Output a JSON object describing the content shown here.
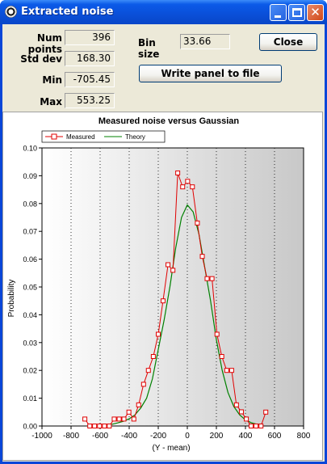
{
  "window": {
    "title": "Extracted noise"
  },
  "titlebar": {
    "close_glyph": "✕"
  },
  "stats": [
    {
      "label": "Num points",
      "value": "396"
    },
    {
      "label": "Std dev",
      "value": "168.30"
    },
    {
      "label": "Min",
      "value": "-705.45"
    },
    {
      "label": "Max",
      "value": "553.25"
    }
  ],
  "bin": {
    "label": "Bin size",
    "value": "33.66"
  },
  "buttons": {
    "close": "Close",
    "write": "Write panel to file"
  },
  "colors": {
    "measured": "#e00000",
    "theory": "#008000",
    "plot_bg_dark": "#c8c8c8",
    "plot_bg_light": "#ffffff"
  },
  "chart_data": {
    "type": "line",
    "title": "Measured noise versus Gaussian",
    "xlabel": "(Y - mean)",
    "ylabel": "Probability",
    "xlim": [
      -1000,
      800
    ],
    "ylim": [
      0,
      0.1
    ],
    "x_ticks": [
      -1000,
      -800,
      -600,
      -400,
      -200,
      0,
      200,
      400,
      600,
      800
    ],
    "y_ticks": [
      0.0,
      0.01,
      0.02,
      0.03,
      0.04,
      0.05,
      0.06,
      0.07,
      0.08,
      0.09,
      0.1
    ],
    "x_tick_labels": [
      "-1000",
      "-800",
      "-600",
      "-400",
      "-200",
      "0",
      "200",
      "400",
      "600",
      "800"
    ],
    "y_tick_labels": [
      "0.00",
      "0.01",
      "0.02",
      "0.03",
      "0.04",
      "0.05",
      "0.06",
      "0.07",
      "0.08",
      "0.09",
      "0.10"
    ],
    "grid": true,
    "legend": "top-left",
    "series": [
      {
        "name": "Measured",
        "marker": "square",
        "x": [
          -705,
          -671,
          -638,
          -604,
          -570,
          -537,
          -503,
          -469,
          -436,
          -402,
          -368,
          -335,
          -301,
          -268,
          -234,
          -200,
          -167,
          -133,
          -99,
          -66,
          -32,
          2,
          35,
          69,
          103,
          136,
          170,
          204,
          237,
          271,
          305,
          338,
          372,
          406,
          439,
          473,
          507,
          540
        ],
        "y": [
          0.0025,
          0.0,
          0.0,
          0.0,
          0.0,
          0.0,
          0.0025,
          0.0025,
          0.0025,
          0.005,
          0.0025,
          0.0076,
          0.015,
          0.02,
          0.025,
          0.033,
          0.045,
          0.058,
          0.056,
          0.091,
          0.086,
          0.088,
          0.086,
          0.073,
          0.061,
          0.053,
          0.053,
          0.033,
          0.025,
          0.02,
          0.02,
          0.0076,
          0.0051,
          0.0025,
          0.0,
          0.0,
          0.0,
          0.005
        ]
      },
      {
        "name": "Theory",
        "x": [
          -560,
          -520,
          -480,
          -440,
          -400,
          -360,
          -320,
          -280,
          -240,
          -200,
          -160,
          -120,
          -80,
          -40,
          0,
          40,
          80,
          120,
          160,
          200,
          240,
          280,
          320,
          360,
          400,
          440,
          480,
          520
        ],
        "y": [
          0.0003,
          0.0006,
          0.0011,
          0.0017,
          0.0026,
          0.004,
          0.0065,
          0.01,
          0.017,
          0.0275,
          0.038,
          0.05,
          0.064,
          0.075,
          0.0795,
          0.077,
          0.069,
          0.057,
          0.045,
          0.031,
          0.02,
          0.012,
          0.007,
          0.004,
          0.0022,
          0.0012,
          0.0006,
          0.0003
        ]
      }
    ]
  }
}
